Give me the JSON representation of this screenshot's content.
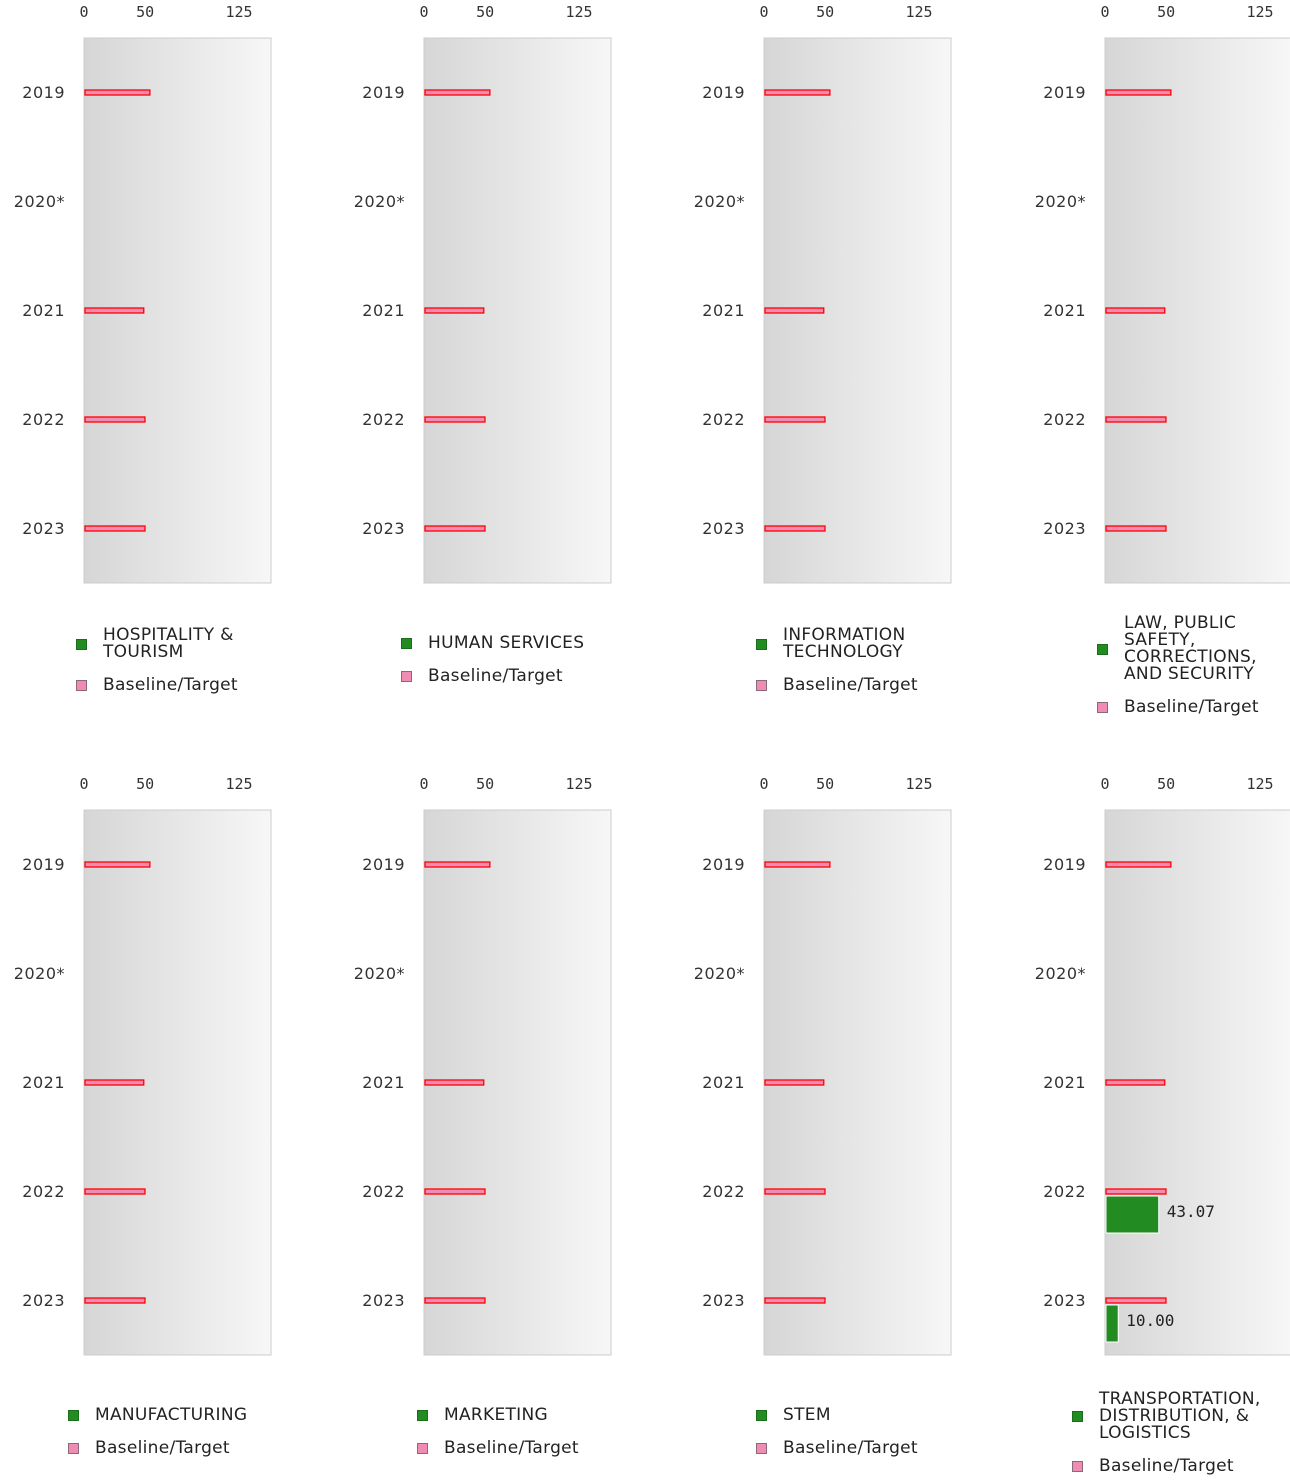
{
  "chart_data": [
    {
      "type": "bar",
      "title": "",
      "legend": [
        "HOSPITALITY & TOURISM",
        "Baseline/Target"
      ],
      "categories": [
        "2019",
        "2020*",
        "2021",
        "2022",
        "2023"
      ],
      "xticks": [
        "0",
        "50",
        "125"
      ],
      "xlim": [
        0,
        150
      ],
      "series": [
        {
          "name": "HOSPITALITY & TOURISM",
          "values": [
            null,
            null,
            null,
            null,
            null
          ]
        },
        {
          "name": "Baseline/Target",
          "values": [
            53,
            null,
            48,
            49,
            49
          ]
        }
      ],
      "data_labels": [
        null,
        null,
        null,
        null,
        null
      ]
    },
    {
      "type": "bar",
      "title": "",
      "legend": [
        "HUMAN SERVICES",
        "Baseline/Target"
      ],
      "categories": [
        "2019",
        "2020*",
        "2021",
        "2022",
        "2023"
      ],
      "xticks": [
        "0",
        "50",
        "125"
      ],
      "xlim": [
        0,
        150
      ],
      "series": [
        {
          "name": "HUMAN SERVICES",
          "values": [
            null,
            null,
            null,
            null,
            null
          ]
        },
        {
          "name": "Baseline/Target",
          "values": [
            53,
            null,
            48,
            49,
            49
          ]
        }
      ],
      "data_labels": [
        null,
        null,
        null,
        null,
        null
      ]
    },
    {
      "type": "bar",
      "title": "",
      "legend": [
        "INFORMATION TECHNOLOGY",
        "Baseline/Target"
      ],
      "categories": [
        "2019",
        "2020*",
        "2021",
        "2022",
        "2023"
      ],
      "xticks": [
        "0",
        "50",
        "125"
      ],
      "xlim": [
        0,
        150
      ],
      "series": [
        {
          "name": "INFORMATION TECHNOLOGY",
          "values": [
            null,
            null,
            null,
            null,
            null
          ]
        },
        {
          "name": "Baseline/Target",
          "values": [
            53,
            null,
            48,
            49,
            49
          ]
        }
      ],
      "data_labels": [
        null,
        null,
        null,
        null,
        null
      ]
    },
    {
      "type": "bar",
      "title": "",
      "legend": [
        "LAW, PUBLIC SAFETY, CORRECTIONS, AND SECURITY",
        "Baseline/Target"
      ],
      "categories": [
        "2019",
        "2020*",
        "2021",
        "2022",
        "2023"
      ],
      "xticks": [
        "0",
        "50",
        "125"
      ],
      "xlim": [
        0,
        150
      ],
      "series": [
        {
          "name": "LAW, PUBLIC SAFETY, CORRECTIONS, AND SECURITY",
          "values": [
            null,
            null,
            null,
            null,
            null
          ]
        },
        {
          "name": "Baseline/Target",
          "values": [
            53,
            null,
            48,
            49,
            49
          ]
        }
      ],
      "data_labels": [
        null,
        null,
        null,
        null,
        null
      ]
    },
    {
      "type": "bar",
      "title": "",
      "legend": [
        "MANUFACTURING",
        "Baseline/Target"
      ],
      "categories": [
        "2019",
        "2020*",
        "2021",
        "2022",
        "2023"
      ],
      "xticks": [
        "0",
        "50",
        "125"
      ],
      "xlim": [
        0,
        150
      ],
      "series": [
        {
          "name": "MANUFACTURING",
          "values": [
            null,
            null,
            null,
            null,
            null
          ]
        },
        {
          "name": "Baseline/Target",
          "values": [
            53,
            null,
            48,
            49,
            49
          ]
        }
      ],
      "data_labels": [
        null,
        null,
        null,
        null,
        null
      ]
    },
    {
      "type": "bar",
      "title": "",
      "legend": [
        "MARKETING",
        "Baseline/Target"
      ],
      "categories": [
        "2019",
        "2020*",
        "2021",
        "2022",
        "2023"
      ],
      "xticks": [
        "0",
        "50",
        "125"
      ],
      "xlim": [
        0,
        150
      ],
      "series": [
        {
          "name": "MARKETING",
          "values": [
            null,
            null,
            null,
            null,
            null
          ]
        },
        {
          "name": "Baseline/Target",
          "values": [
            53,
            null,
            48,
            49,
            49
          ]
        }
      ],
      "data_labels": [
        null,
        null,
        null,
        null,
        null
      ]
    },
    {
      "type": "bar",
      "title": "",
      "legend": [
        "STEM",
        "Baseline/Target"
      ],
      "categories": [
        "2019",
        "2020*",
        "2021",
        "2022",
        "2023"
      ],
      "xticks": [
        "0",
        "50",
        "125"
      ],
      "xlim": [
        0,
        150
      ],
      "series": [
        {
          "name": "STEM",
          "values": [
            null,
            null,
            null,
            null,
            null
          ]
        },
        {
          "name": "Baseline/Target",
          "values": [
            53,
            null,
            48,
            49,
            49
          ]
        }
      ],
      "data_labels": [
        null,
        null,
        null,
        null,
        null
      ]
    },
    {
      "type": "bar",
      "title": "",
      "legend": [
        "TRANSPORTATION, DISTRIBUTION, & LOGISTICS",
        "Baseline/Target"
      ],
      "categories": [
        "2019",
        "2020*",
        "2021",
        "2022",
        "2023"
      ],
      "xticks": [
        "0",
        "50",
        "125"
      ],
      "xlim": [
        0,
        150
      ],
      "series": [
        {
          "name": "TRANSPORTATION, DISTRIBUTION, & LOGISTICS",
          "values": [
            null,
            null,
            null,
            43.07,
            10.0
          ]
        },
        {
          "name": "Baseline/Target",
          "values": [
            53,
            null,
            48,
            49,
            49
          ]
        }
      ],
      "data_labels": [
        null,
        null,
        null,
        "43.07",
        "10.00"
      ]
    }
  ],
  "colors": {
    "value_bar": "#228b22",
    "baseline_fill": "#f08cb4",
    "baseline_stroke": "#ff0000",
    "plot_grad_left": "#d6d6d6",
    "plot_grad_right": "#f7f7f7"
  },
  "legend_text": {
    "0": [
      "HOSPITALITY &",
      "TOURISM"
    ],
    "1": [
      "HUMAN SERVICES"
    ],
    "2": [
      "INFORMATION",
      "TECHNOLOGY"
    ],
    "3": [
      "LAW, PUBLIC",
      "SAFETY,",
      "CORRECTIONS,",
      "AND SECURITY"
    ],
    "4": [
      "MANUFACTURING"
    ],
    "5": [
      "MARKETING"
    ],
    "6": [
      "STEM"
    ],
    "7": [
      "TRANSPORTATION,",
      "DISTRIBUTION, &",
      "LOGISTICS"
    ]
  }
}
